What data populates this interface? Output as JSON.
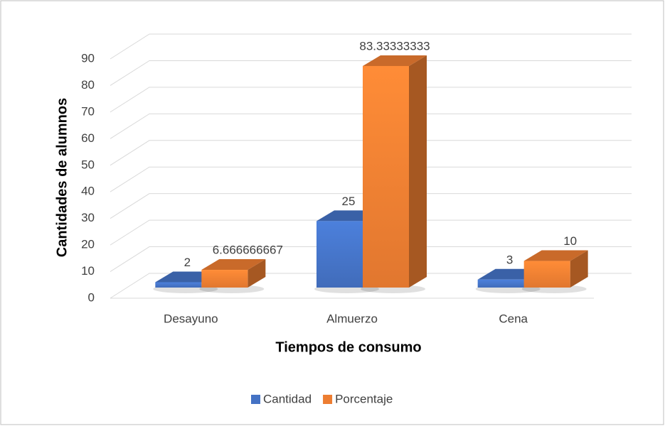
{
  "chart_data": {
    "type": "bar3d",
    "x_label": "Tiempos de consumo",
    "y_label": "Cantidades de alumnos",
    "categories": [
      "Desayuno",
      "Almuerzo",
      "Cena"
    ],
    "series": [
      {
        "name": "Cantidad",
        "color": "#4472c4",
        "values": [
          2,
          25,
          3
        ]
      },
      {
        "name": "Porcentaje",
        "color": "#ed7d31",
        "values": [
          6.666666667,
          83.33333333,
          10
        ]
      }
    ],
    "ylim": [
      0,
      90
    ],
    "yticks": [
      0,
      10,
      20,
      30,
      40,
      50,
      60,
      70,
      80,
      90
    ],
    "grid": true,
    "legend": "bottom"
  }
}
